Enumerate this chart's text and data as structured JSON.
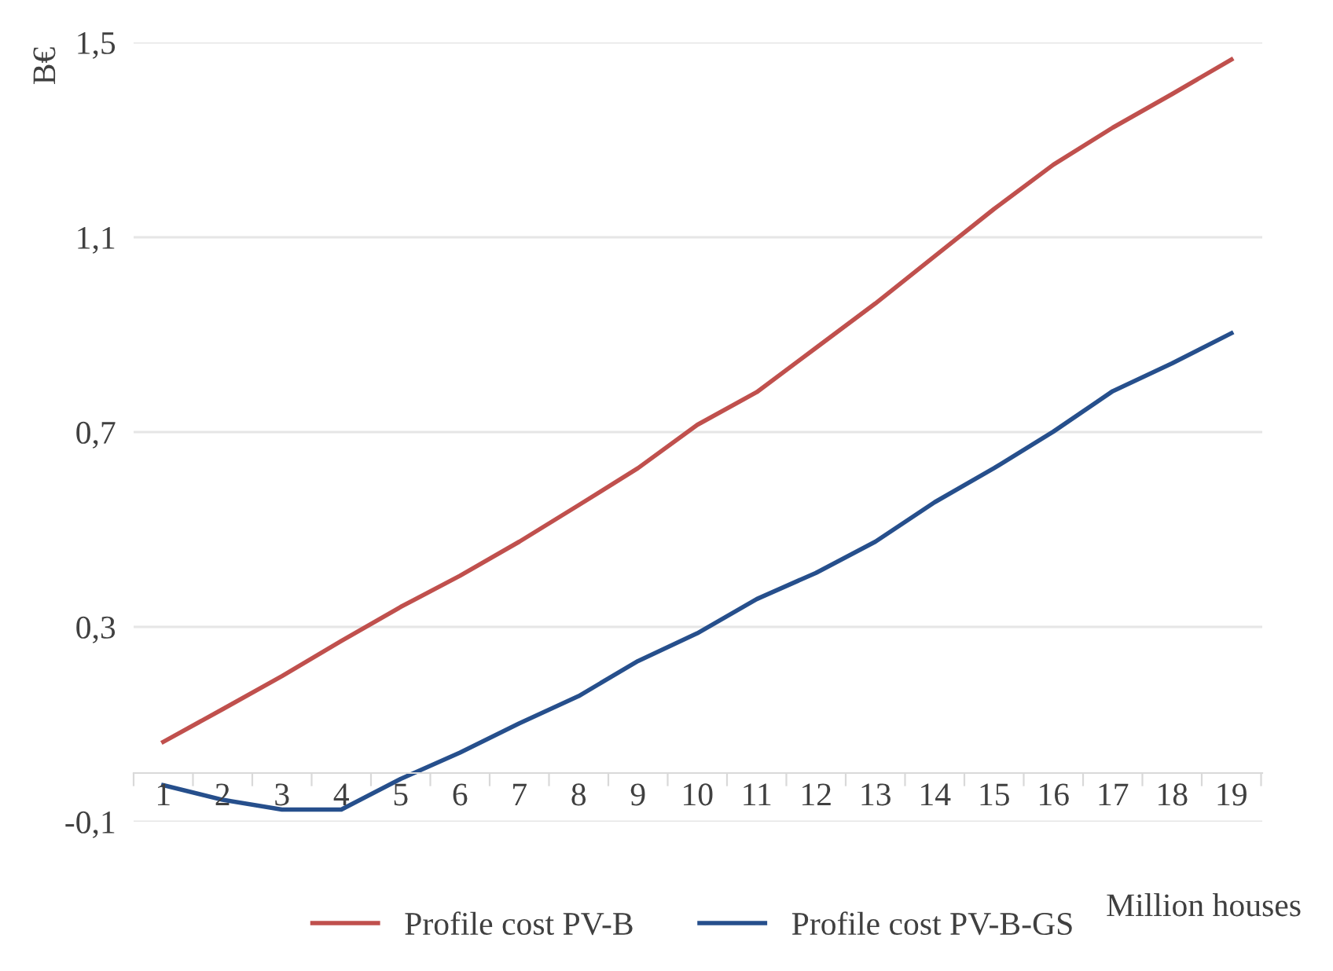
{
  "chart_data": {
    "type": "line",
    "ylabel": "B€",
    "xlabel": "Million houses",
    "categories": [
      "1",
      "2",
      "3",
      "4",
      "5",
      "6",
      "7",
      "8",
      "9",
      "10",
      "11",
      "12",
      "13",
      "14",
      "15",
      "16",
      "17",
      "18",
      "19"
    ],
    "series": [
      {
        "name": "Profile cost PV-B",
        "color": "#c0504d",
        "values": [
          0.064,
          0.131,
          0.199,
          0.271,
          0.341,
          0.405,
          0.475,
          0.55,
          0.626,
          0.715,
          0.782,
          0.873,
          0.964,
          1.061,
          1.158,
          1.249,
          1.325,
          1.394,
          1.465
        ]
      },
      {
        "name": "Profile cost PV-B-GS",
        "color": "#264f8c",
        "values": [
          -0.025,
          -0.055,
          -0.075,
          -0.075,
          -0.012,
          0.042,
          0.102,
          0.158,
          0.23,
          0.287,
          0.357,
          0.411,
          0.475,
          0.556,
          0.626,
          0.701,
          0.784,
          0.841,
          0.903
        ]
      }
    ],
    "ylim": [
      -0.1,
      1.5
    ],
    "yticks": [
      {
        "value": -0.1,
        "label": "-0,1"
      },
      {
        "value": 0.3,
        "label": "0,3"
      },
      {
        "value": 0.7,
        "label": "0,7"
      },
      {
        "value": 1.1,
        "label": "1,1"
      },
      {
        "value": 1.5,
        "label": "1,5"
      }
    ],
    "grid": "y",
    "legend": "bottom",
    "marker": "none",
    "line_style": "solid"
  }
}
